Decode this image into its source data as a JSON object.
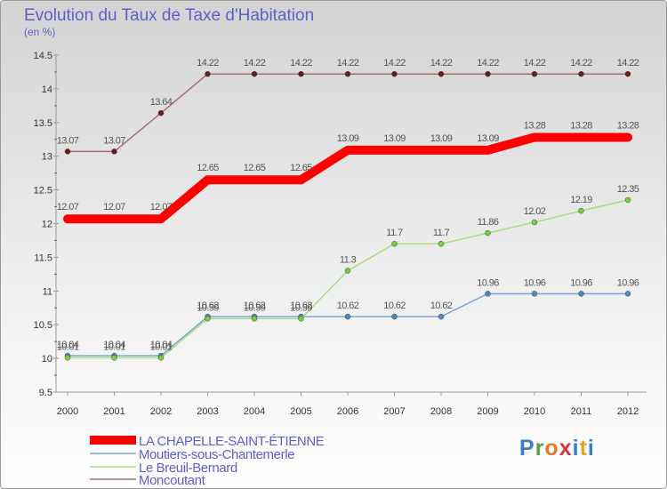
{
  "title": "Evolution du Taux de Taxe d'Habitation",
  "subtitle": "(en %)",
  "logo_text": "Proxiti",
  "chart_data": {
    "type": "line",
    "x": [
      "2000",
      "2001",
      "2002",
      "2003",
      "2004",
      "2005",
      "2006",
      "2007",
      "2008",
      "2009",
      "2010",
      "2011",
      "2012"
    ],
    "ylim": [
      9.5,
      14.5
    ],
    "yticks": [
      "9.5",
      "10",
      "10.5",
      "11",
      "11.5",
      "12",
      "12.5",
      "13",
      "13.5",
      "14",
      "14.5"
    ],
    "grid": false,
    "legend_position": "bottom-left",
    "series": [
      {
        "name": "LA CHAPELLE-SAINT-ÉTIENNE",
        "values": [
          12.07,
          12.07,
          12.07,
          12.65,
          12.65,
          12.65,
          13.09,
          13.09,
          13.09,
          13.09,
          13.28,
          13.28,
          13.28
        ],
        "labels": [
          "12.07",
          "12.07",
          "12.07",
          "12.65",
          "12.65",
          "12.65",
          "13.09",
          "13.09",
          "13.09",
          "13.09",
          "13.28",
          "13.28",
          "13.28"
        ],
        "color": "#ff0000",
        "width": 10,
        "markers": false
      },
      {
        "name": "Moutiers-sous-Chantemerle",
        "values": [
          10.04,
          10.04,
          10.04,
          10.62,
          10.62,
          10.62,
          10.62,
          10.62,
          10.62,
          10.96,
          10.96,
          10.96,
          10.96
        ],
        "labels": [
          "10.04",
          "10.04",
          "10.04",
          "10.62",
          "10.62",
          "10.62",
          "10.62",
          "10.62",
          "10.62",
          "10.96",
          "10.96",
          "10.96",
          "10.96"
        ],
        "color": "#7fa3d4",
        "marker_color": "#4f86c6",
        "width": 1.5,
        "markers": true
      },
      {
        "name": "Le Breuil-Bernard",
        "values": [
          10.01,
          10.01,
          10.01,
          10.59,
          10.59,
          10.59,
          11.3,
          11.7,
          11.7,
          11.86,
          12.02,
          12.19,
          12.35
        ],
        "labels": [
          "10.01",
          "10.01",
          "10.01",
          "10.59",
          "10.59",
          "10.59",
          "11.3",
          "11.7",
          "11.7",
          "11.86",
          "12.02",
          "12.19",
          "12.35"
        ],
        "color": "#a8dd80",
        "marker_color": "#7ccc40",
        "width": 1.5,
        "markers": true
      },
      {
        "name": "Moncoutant",
        "values": [
          13.07,
          13.07,
          13.64,
          14.22,
          14.22,
          14.22,
          14.22,
          14.22,
          14.22,
          14.22,
          14.22,
          14.22,
          14.22
        ],
        "labels": [
          "13.07",
          "13.07",
          "13.64",
          "14.22",
          "14.22",
          "14.22",
          "14.22",
          "14.22",
          "14.22",
          "14.22",
          "14.22",
          "14.22",
          "14.22"
        ],
        "color": "#a07070",
        "marker_color": "#6b1b1b",
        "width": 1.5,
        "markers": true
      }
    ]
  }
}
